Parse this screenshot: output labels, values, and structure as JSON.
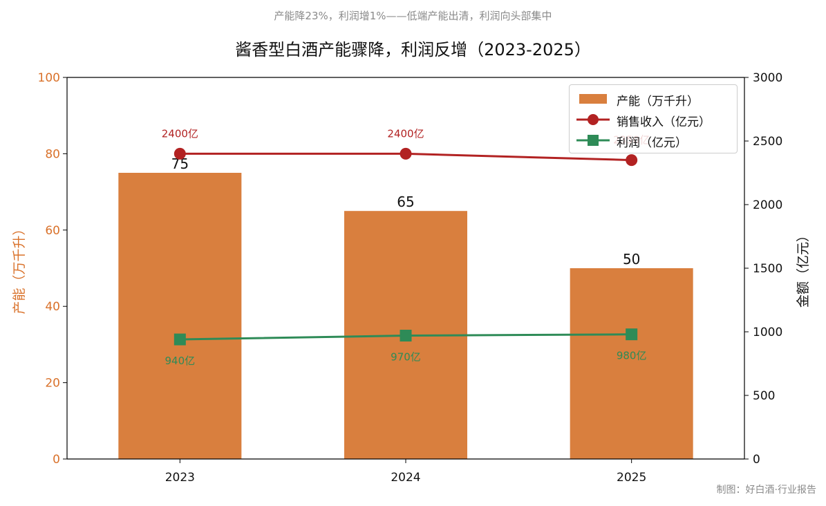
{
  "header": {
    "subtitle": "产能降23%，利润增1%——低端产能出清，利润向头部集中",
    "title": "酱香型白酒产能骤降，利润反增（2023-2025）"
  },
  "footer": {
    "credit": "制图：好白酒·行业报告"
  },
  "colors": {
    "bar": "#d97f3e",
    "revenue": "#b22222",
    "profit": "#2e8b57",
    "left_axis": "#d9712a"
  },
  "legend": {
    "capacity": "产能（万千升）",
    "revenue": "销售收入（亿元）",
    "profit": "利润（亿元）"
  },
  "chart_data": {
    "type": "bar",
    "categories": [
      "2023",
      "2024",
      "2025"
    ],
    "series": [
      {
        "name": "产能（万千升）",
        "type": "bar",
        "axis": "left",
        "values": [
          75,
          65,
          50
        ],
        "data_labels": [
          "75",
          "65",
          "50"
        ]
      },
      {
        "name": "销售收入（亿元）",
        "type": "line",
        "axis": "right",
        "marker": "circle",
        "values": [
          2400,
          2400,
          2350
        ],
        "data_labels": [
          "2400亿",
          "2400亿",
          "2350亿"
        ]
      },
      {
        "name": "利润（亿元）",
        "type": "line",
        "axis": "right",
        "marker": "square",
        "values": [
          940,
          970,
          980
        ],
        "data_labels": [
          "940亿",
          "970亿",
          "980亿"
        ]
      }
    ],
    "ylabel": "产能（万千升）",
    "y2label": "金额（亿元）",
    "ylim": [
      0,
      100
    ],
    "y2lim": [
      0,
      3000
    ],
    "yticks": [
      0,
      20,
      40,
      60,
      80,
      100
    ],
    "y2ticks": [
      0,
      500,
      1000,
      1500,
      2000,
      2500,
      3000
    ],
    "grid": false,
    "legend_position": "top-right"
  }
}
